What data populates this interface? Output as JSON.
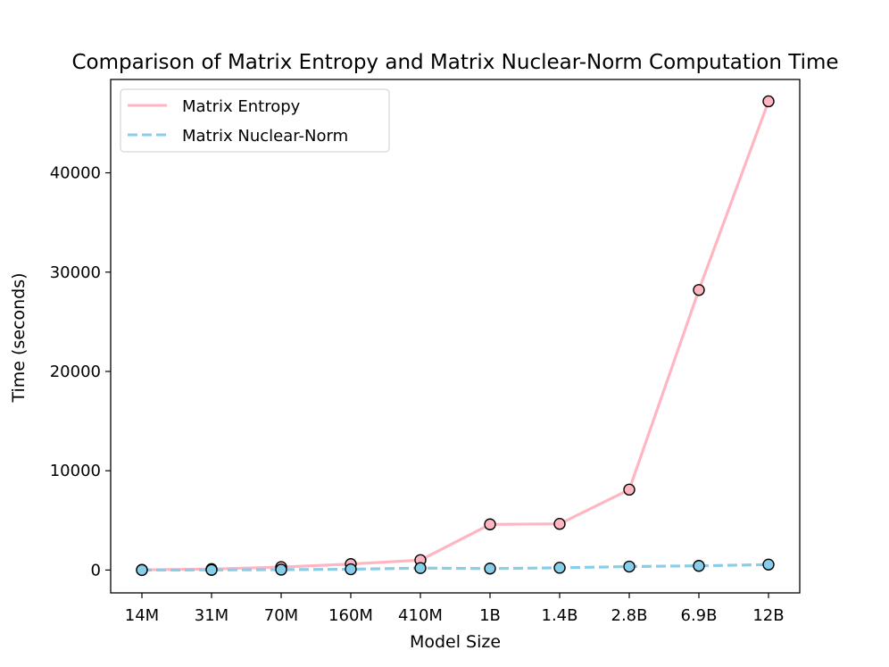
{
  "chart_data": {
    "type": "line",
    "title": "Comparison of Matrix Entropy and Matrix Nuclear-Norm Computation Time",
    "xlabel": "Model Size",
    "ylabel": "Time (seconds)",
    "categories": [
      "14M",
      "31M",
      "70M",
      "160M",
      "410M",
      "1B",
      "1.4B",
      "2.8B",
      "6.9B",
      "12B"
    ],
    "ylim": [
      -2300,
      49400
    ],
    "yticks": [
      0,
      10000,
      20000,
      30000,
      40000
    ],
    "ytick_labels": [
      "0",
      "10000",
      "20000",
      "30000",
      "40000"
    ],
    "grid": false,
    "legend_position": "top-left",
    "series": [
      {
        "name": "Matrix Entropy",
        "color": "#FFB6C1",
        "line_style": "solid",
        "values": [
          20,
          100,
          300,
          600,
          1000,
          4600,
          4650,
          8100,
          28200,
          47200
        ]
      },
      {
        "name": "Matrix Nuclear-Norm",
        "color": "#87CEEB",
        "line_style": "dashed",
        "values": [
          5,
          15,
          40,
          80,
          200,
          150,
          230,
          350,
          420,
          550
        ]
      }
    ]
  }
}
